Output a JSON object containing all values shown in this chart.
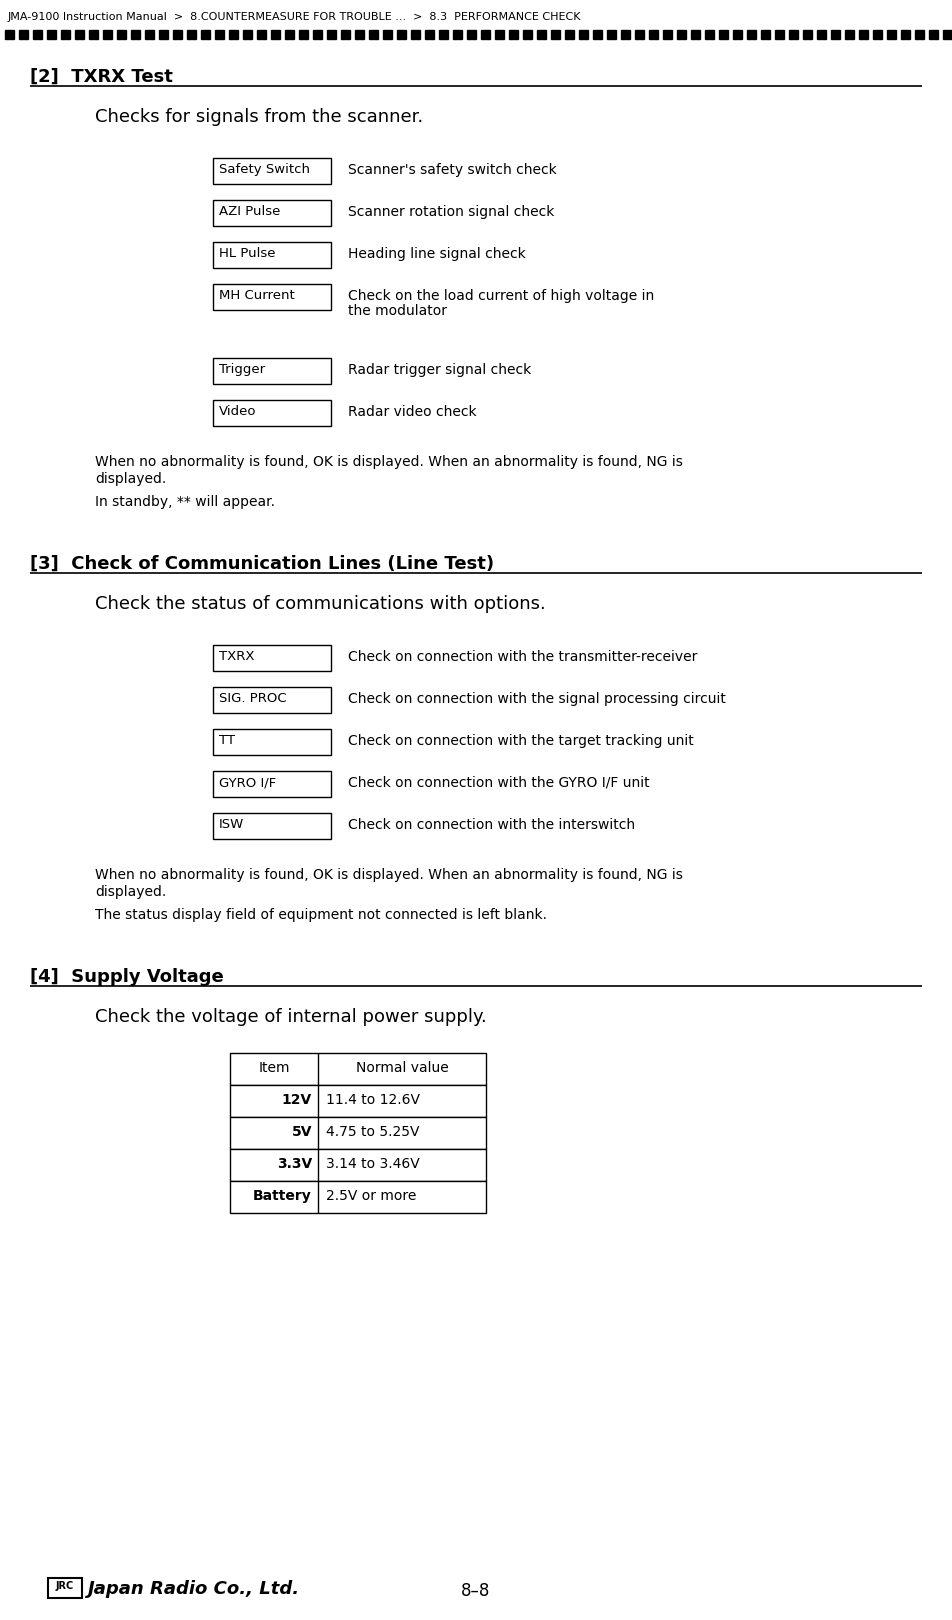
{
  "bg_color": "#ffffff",
  "header_text": "JMA-9100 Instruction Manual  >  8.COUNTERMEASURE FOR TROUBLE ...  >  8.3  PERFORMANCE CHECK",
  "section2_title": "[2]  TXRX Test",
  "section2_intro": "Checks for signals from the scanner.",
  "section2_items": [
    {
      "label": "Safety Switch",
      "desc": "Scanner's safety switch check"
    },
    {
      "label": "AZI Pulse",
      "desc": "Scanner rotation signal check"
    },
    {
      "label": "HL Pulse",
      "desc": "Heading line signal check"
    },
    {
      "label": "MH Current",
      "desc": "Check on the load current of high voltage in\nthe modulator"
    },
    {
      "label": "Trigger",
      "desc": "Radar trigger signal check"
    },
    {
      "label": "Video",
      "desc": "Radar video check"
    }
  ],
  "section2_note1": "When no abnormality is found, OK is displayed. When an abnormality is found, NG is\ndisplayed.",
  "section2_note2": "In standby, ** will appear.",
  "section3_title": "[3]  Check of Communication Lines (Line Test)",
  "section3_intro": "Check the status of communications with options.",
  "section3_items": [
    {
      "label": "TXRX",
      "desc": "Check on connection with the transmitter-receiver"
    },
    {
      "label": "SIG. PROC",
      "desc": "Check on connection with the signal processing circuit"
    },
    {
      "label": "TT",
      "desc": "Check on connection with the target tracking unit"
    },
    {
      "label": "GYRO I/F",
      "desc": "Check on connection with the GYRO I/F unit"
    },
    {
      "label": "ISW",
      "desc": "Check on connection with the interswitch"
    }
  ],
  "section3_note1": "When no abnormality is found, OK is displayed. When an abnormality is found, NG is\ndisplayed.",
  "section3_note2": "The status display field of equipment not connected is left blank.",
  "section4_title": "[4]  Supply Voltage",
  "section4_intro": "Check the voltage of internal power supply.",
  "table_headers": [
    "Item",
    "Normal value"
  ],
  "table_rows": [
    [
      "12V",
      "11.4 to 12.6V"
    ],
    [
      "5V",
      "4.75 to 5.25V"
    ],
    [
      "3.3V",
      "3.14 to 3.46V"
    ],
    [
      "Battery",
      "2.5V or more"
    ]
  ],
  "footer_page": "8–8"
}
